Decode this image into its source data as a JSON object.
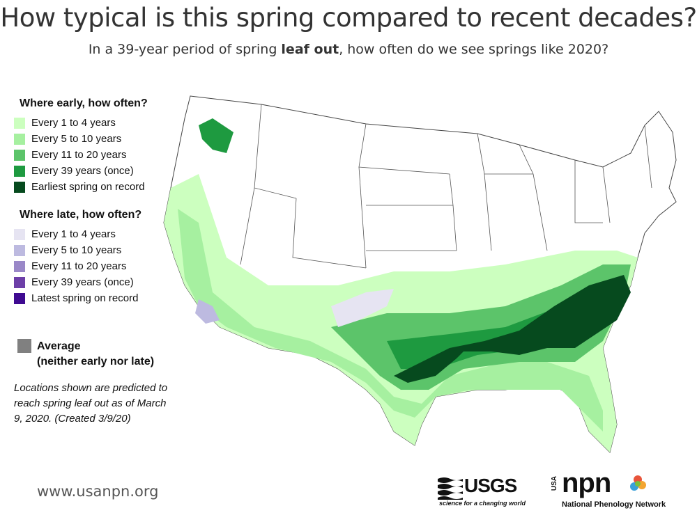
{
  "title": "How typical is this spring compared to recent decades?",
  "subtitle": {
    "before": "In a 39-year period of spring ",
    "bold": "leaf out",
    "after": ", how often do we see springs like 2020?"
  },
  "legend_early": {
    "heading": "Where early, how often?",
    "items": [
      {
        "label": "Every 1 to 4 years",
        "color": "#ccffbf"
      },
      {
        "label": "Every 5 to 10 years",
        "color": "#a6f0a0"
      },
      {
        "label": "Every 11 to 20 years",
        "color": "#5cc46a"
      },
      {
        "label": "Every 39 years (once)",
        "color": "#1e9a40"
      },
      {
        "label": "Earliest spring on record",
        "color": "#064a1e"
      }
    ]
  },
  "legend_late": {
    "heading": "Where late, how often?",
    "items": [
      {
        "label": "Every 1 to 4 years",
        "color": "#e6e4f2"
      },
      {
        "label": "Every 5 to 10 years",
        "color": "#bdbae0"
      },
      {
        "label": "Every 11 to 20 years",
        "color": "#9a88c8"
      },
      {
        "label": "Every 39 years (once)",
        "color": "#6d3fa8"
      },
      {
        "label": "Latest spring on record",
        "color": "#3f0a91"
      }
    ]
  },
  "average": {
    "line1": "Average",
    "line2": "(neither early nor late)",
    "color": "#808080"
  },
  "note": "Locations shown are predicted to reach spring leaf out as of March 9, 2020. (Created 3/9/20)",
  "footer": {
    "url": "www.usanpn.org",
    "usgs_name": "USGS",
    "usgs_tagline": "science for a changing world",
    "npn_prefix": "USA",
    "npn_name": "npn",
    "npn_tagline": "National Phenology Network"
  }
}
